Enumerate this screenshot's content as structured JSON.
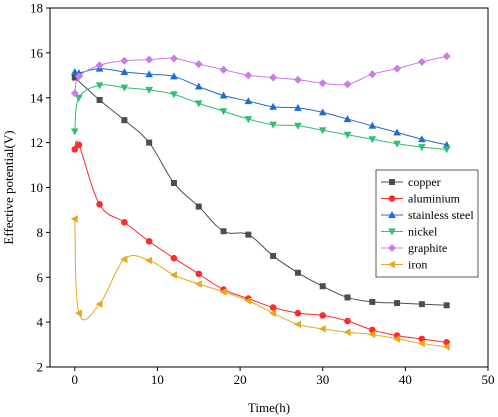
{
  "chart_data": {
    "type": "line",
    "xlabel": "Time(h)",
    "ylabel": "Effective potential(V)",
    "xlim": [
      -3,
      50
    ],
    "ylim": [
      2,
      18
    ],
    "xticks": [
      0,
      10,
      20,
      30,
      40,
      50
    ],
    "yticks": [
      2,
      4,
      6,
      8,
      10,
      12,
      14,
      16,
      18
    ],
    "legend_position": "right",
    "series": [
      {
        "name": "copper",
        "color": "#4d4d4d",
        "marker": "square",
        "x": [
          0,
          3,
          6,
          9,
          12,
          15,
          18,
          21,
          24,
          27,
          30,
          33,
          36,
          39,
          42,
          45
        ],
        "y": [
          14.9,
          13.9,
          13.0,
          12.0,
          10.2,
          9.15,
          8.05,
          7.9,
          6.95,
          6.2,
          5.6,
          5.1,
          4.9,
          4.85,
          4.8,
          4.75
        ]
      },
      {
        "name": "aluminium",
        "color": "#ff2a2a",
        "marker": "circle",
        "x": [
          0,
          0.5,
          3,
          6,
          9,
          12,
          15,
          18,
          21,
          24,
          27,
          30,
          33,
          36,
          39,
          42,
          45
        ],
        "y": [
          11.7,
          11.9,
          9.25,
          8.45,
          7.6,
          6.85,
          6.15,
          5.45,
          5.05,
          4.65,
          4.4,
          4.3,
          4.05,
          3.65,
          3.4,
          3.25,
          3.1
        ]
      },
      {
        "name": "stainless steel",
        "color": "#1f6bd6",
        "marker": "triangle-up",
        "x": [
          0,
          0.5,
          3,
          6,
          9,
          12,
          15,
          18,
          21,
          24,
          27,
          30,
          33,
          36,
          39,
          42,
          45
        ],
        "y": [
          15.15,
          15.1,
          15.3,
          15.15,
          15.05,
          14.95,
          14.5,
          14.1,
          13.85,
          13.6,
          13.55,
          13.35,
          13.05,
          12.75,
          12.45,
          12.15,
          11.9
        ]
      },
      {
        "name": "nickel",
        "color": "#2fbf71",
        "marker": "triangle-down",
        "x": [
          0,
          0.5,
          3,
          6,
          9,
          12,
          15,
          18,
          21,
          24,
          27,
          30,
          33,
          36,
          39,
          42,
          45
        ],
        "y": [
          12.5,
          14.0,
          14.55,
          14.45,
          14.35,
          14.15,
          13.75,
          13.4,
          13.05,
          12.8,
          12.75,
          12.55,
          12.35,
          12.15,
          11.95,
          11.8,
          11.7
        ]
      },
      {
        "name": "graphite",
        "color": "#c77ce8",
        "marker": "diamond",
        "x": [
          0,
          0.5,
          3,
          6,
          9,
          12,
          15,
          18,
          21,
          24,
          27,
          30,
          33,
          36,
          39,
          42,
          45
        ],
        "y": [
          14.2,
          14.95,
          15.45,
          15.65,
          15.7,
          15.75,
          15.5,
          15.25,
          15.0,
          14.9,
          14.8,
          14.65,
          14.6,
          15.05,
          15.3,
          15.6,
          15.85
        ]
      },
      {
        "name": "iron",
        "color": "#e6a91a",
        "marker": "triangle-left",
        "x": [
          0,
          0.5,
          3,
          6,
          9,
          12,
          15,
          18,
          21,
          24,
          27,
          30,
          33,
          36,
          39,
          42,
          45
        ],
        "y": [
          8.6,
          4.4,
          4.8,
          6.8,
          6.75,
          6.1,
          5.7,
          5.35,
          4.95,
          4.4,
          3.9,
          3.7,
          3.55,
          3.45,
          3.25,
          3.05,
          2.9
        ]
      }
    ]
  }
}
